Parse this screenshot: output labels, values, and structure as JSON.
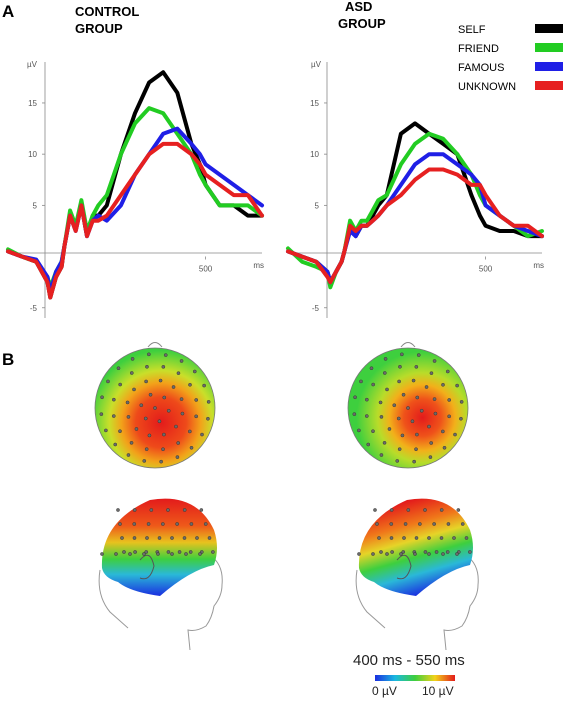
{
  "panels": {
    "a": "A",
    "b": "B"
  },
  "legend": [
    {
      "name": "SELF",
      "color": "#000000"
    },
    {
      "name": "FRIEND",
      "color": "#22cc22"
    },
    {
      "name": "FAMOUS",
      "color": "#1f1fe6"
    },
    {
      "name": "UNKNOWN",
      "color": "#e62020"
    }
  ],
  "colors": {
    "axis": "#888888",
    "map_high": "#e31b1b",
    "map_mid": "#3ecf3e",
    "map_low": "#1a2ee0"
  },
  "chart_data": [
    {
      "type": "line",
      "title": "CONTROL\nGROUP",
      "ylabel": "µV",
      "xlabel": "ms",
      "x_ticks": [
        500
      ],
      "y_ticks": [
        -5,
        5,
        10,
        15
      ],
      "xlim": [
        -200,
        700
      ],
      "ylim": [
        -6,
        19
      ],
      "x": [
        -200,
        -150,
        -100,
        -60,
        -50,
        -30,
        -10,
        0,
        20,
        40,
        60,
        80,
        100,
        120,
        150,
        200,
        250,
        300,
        350,
        400,
        450,
        480,
        500,
        550,
        600,
        650,
        700
      ],
      "series": [
        {
          "name": "SELF",
          "values": [
            0.5,
            0,
            -0.5,
            -2.5,
            -4,
            -2,
            -1,
            1,
            4,
            3,
            5,
            2,
            4,
            4,
            5,
            10,
            14,
            17,
            18,
            16,
            11,
            9,
            7,
            5,
            5,
            4,
            4
          ]
        },
        {
          "name": "FRIEND",
          "values": [
            0.7,
            0,
            -0.5,
            -2,
            -3,
            -1.5,
            -0.5,
            1,
            4.5,
            3,
            5.5,
            2.5,
            4,
            5,
            6,
            10,
            13,
            14.5,
            14,
            12,
            10,
            8,
            7,
            5,
            5,
            5,
            4
          ]
        },
        {
          "name": "FAMOUS",
          "values": [
            0.5,
            0,
            -0.3,
            -2,
            -3.5,
            -1.5,
            -0.5,
            1,
            4,
            2.5,
            5,
            2,
            3.5,
            4,
            3.5,
            5,
            8,
            10,
            12,
            12.5,
            11,
            10,
            9,
            8,
            7,
            6,
            5
          ]
        },
        {
          "name": "UNKNOWN",
          "values": [
            0.5,
            0,
            -0.5,
            -2.5,
            -4,
            -2,
            -1,
            1,
            4,
            2.5,
            5,
            2,
            3.5,
            3.5,
            4,
            6,
            8,
            10,
            11,
            11,
            10,
            9,
            8,
            7,
            6,
            6,
            4
          ]
        }
      ]
    },
    {
      "type": "line",
      "title": "ASD\nGROUP",
      "ylabel": "µV",
      "xlabel": "ms",
      "x_ticks": [
        500
      ],
      "y_ticks": [
        -5,
        5,
        10,
        15
      ],
      "xlim": [
        -200,
        700
      ],
      "ylim": [
        -6,
        19
      ],
      "x": [
        -200,
        -150,
        -100,
        -60,
        -50,
        -30,
        -10,
        0,
        20,
        40,
        60,
        80,
        100,
        120,
        150,
        200,
        250,
        300,
        350,
        400,
        450,
        480,
        500,
        550,
        600,
        650,
        700
      ],
      "series": [
        {
          "name": "SELF",
          "values": [
            0.5,
            0,
            -0.5,
            -1.5,
            -2.5,
            -1.5,
            -0.5,
            0.5,
            3,
            2,
            3,
            3,
            4,
            5,
            6,
            12,
            13,
            12,
            11,
            10,
            6,
            4,
            3,
            2.5,
            2.5,
            2,
            2
          ]
        },
        {
          "name": "FRIEND",
          "values": [
            0.8,
            -0.5,
            -1,
            -1.5,
            -3,
            -1.5,
            -0.5,
            0.5,
            3.5,
            2.5,
            3.5,
            3.5,
            4.5,
            5.5,
            6,
            9,
            11,
            12,
            11.5,
            10,
            8,
            6,
            5,
            4,
            3,
            2,
            2.5
          ]
        },
        {
          "name": "FAMOUS",
          "values": [
            0.5,
            0,
            -0.5,
            -1.5,
            -2.5,
            -1.5,
            -0.5,
            0.5,
            2.5,
            2,
            3,
            3,
            3.5,
            4,
            5,
            7,
            9,
            10,
            10,
            9,
            8,
            7,
            5,
            4,
            3,
            2.5,
            2
          ]
        },
        {
          "name": "UNKNOWN",
          "values": [
            0.5,
            0,
            -0.5,
            -2,
            -2.5,
            -1.5,
            -0.5,
            0.5,
            3,
            2.5,
            3,
            3,
            3.5,
            4,
            5,
            6,
            7.5,
            8.5,
            8.5,
            8,
            7,
            7,
            6,
            4,
            3,
            3,
            2
          ]
        }
      ]
    }
  ],
  "topo": {
    "time_window": "400 ms - 550 ms",
    "scale_min": "0 µV",
    "scale_max": "10 µV"
  }
}
